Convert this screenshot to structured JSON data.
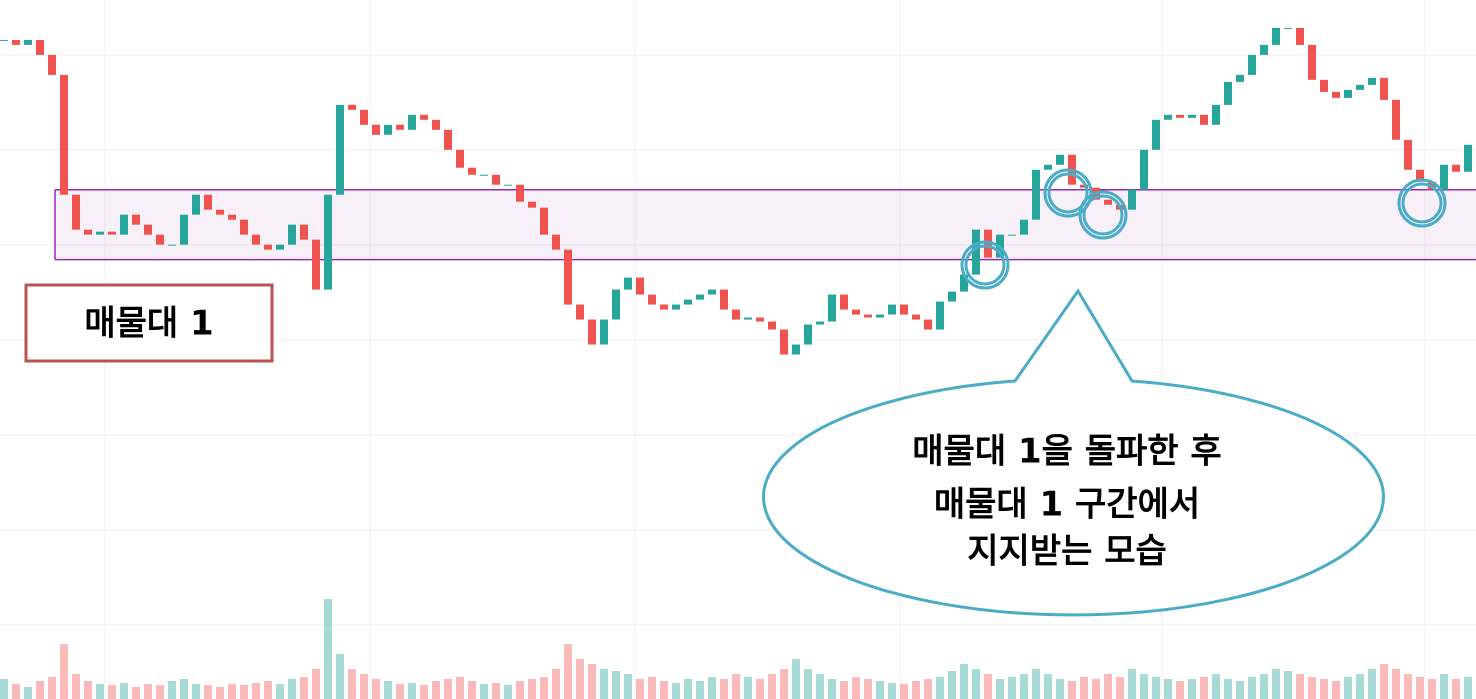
{
  "chart_data": {
    "type": "candlestick",
    "values": [
      660,
      655,
      660,
      645,
      625,
      505,
      470,
      465,
      468,
      465,
      485,
      475,
      465,
      455,
      455,
      485,
      505,
      490,
      485,
      480,
      465,
      455,
      450,
      455,
      475,
      460,
      410,
      505,
      595,
      590,
      575,
      565,
      575,
      570,
      585,
      580,
      570,
      550,
      532,
      525,
      525,
      515,
      515,
      498,
      492,
      465,
      450,
      395,
      380,
      355,
      380,
      410,
      422,
      405,
      395,
      390,
      395,
      400,
      405,
      410,
      390,
      380,
      382,
      378,
      370,
      345,
      355,
      375,
      378,
      405,
      390,
      385,
      382,
      385,
      395,
      385,
      380,
      370,
      398,
      408,
      425,
      470,
      442,
      465,
      465,
      480,
      530,
      535,
      545,
      515,
      512,
      500,
      495,
      490,
      510,
      550,
      580,
      585,
      582,
      585,
      575,
      595,
      618,
      625,
      645,
      655,
      672,
      672,
      655,
      620,
      608,
      602,
      610,
      615,
      622,
      600,
      560,
      530,
      518,
      510,
      535,
      528,
      555
    ],
    "volume": [
      20,
      15,
      12,
      18,
      22,
      55,
      25,
      18,
      15,
      14,
      16,
      12,
      15,
      14,
      18,
      20,
      15,
      14,
      12,
      15,
      14,
      16,
      18,
      15,
      20,
      22,
      30,
      100,
      45,
      30,
      25,
      20,
      18,
      15,
      16,
      14,
      18,
      20,
      22,
      18,
      15,
      16,
      14,
      18,
      20,
      22,
      30,
      55,
      40,
      35,
      30,
      28,
      25,
      20,
      22,
      18,
      16,
      20,
      18,
      22,
      20,
      25,
      22,
      20,
      25,
      30,
      40,
      30,
      25,
      20,
      18,
      22,
      20,
      18,
      16,
      15,
      18,
      20,
      22,
      28,
      35,
      30,
      25,
      20,
      22,
      25,
      30,
      25,
      20,
      18,
      22,
      20,
      25,
      22,
      30,
      25,
      22,
      20,
      18,
      20,
      22,
      25,
      20,
      18,
      22,
      25,
      30,
      28,
      25,
      22,
      20,
      18,
      22,
      25,
      30,
      35,
      30,
      25,
      22,
      20,
      25,
      20,
      22
    ],
    "ylim": [
      0,
      700
    ],
    "volume_lim": [
      0,
      100
    ],
    "up_color": "#26a69a",
    "down_color": "#ef5350",
    "zone": {
      "label": "매물대 1",
      "low": 440,
      "high": 510,
      "color": "#9c27b0"
    },
    "annotation": [
      "매물대 1을 돌파한 후",
      "매물대 1 구간에서",
      "지지받는 모습"
    ]
  }
}
